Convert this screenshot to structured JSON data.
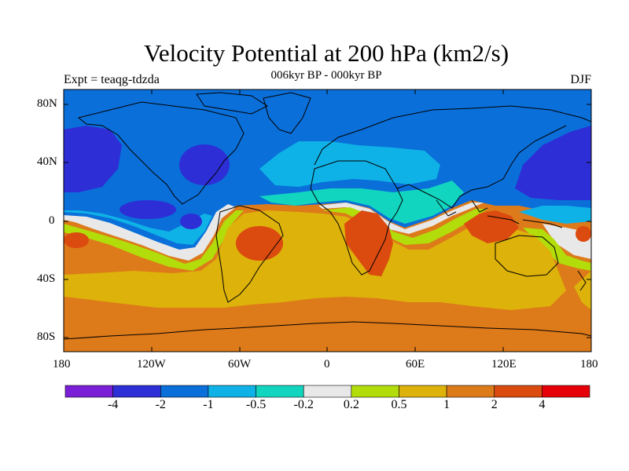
{
  "title": "Velocity Potential at 200 hPa (km2/s)",
  "subtitle": "006kyr BP - 000kyr BP",
  "left_string": "Expt = teaqg-tdzda",
  "right_string": "DJF",
  "lat_labels": [
    "80N",
    "40N",
    "0",
    "40S",
    "80S"
  ],
  "lon_labels": [
    "180",
    "120W",
    "60W",
    "0",
    "60E",
    "120E",
    "180"
  ],
  "colorbar": {
    "labels": [
      "-4",
      "-2",
      "-1",
      "-0.5",
      "-0.2",
      "0.2",
      "0.5",
      "1",
      "2",
      "4"
    ],
    "colors": [
      "#7a1fd6",
      "#2d2ed6",
      "#0a6fd9",
      "#0fb2e6",
      "#12d5bf",
      "#e8e8e8",
      "#b2dc0a",
      "#ddb20a",
      "#dd7a1a",
      "#db4a0f",
      "#e6000a"
    ]
  },
  "chart_data": {
    "type": "heatmap",
    "variable": "Velocity Potential at 200 hPa",
    "units": "km2/s",
    "season": "DJF",
    "comparison": "006kyr BP - 000kyr BP",
    "experiment": "teaqg-tdzda",
    "x_range": [
      -180,
      180
    ],
    "y_range": [
      -90,
      90
    ],
    "contour_levels": [
      -4,
      -2,
      -1,
      -0.5,
      -0.2,
      0.2,
      0.5,
      1,
      2,
      4
    ]
  }
}
